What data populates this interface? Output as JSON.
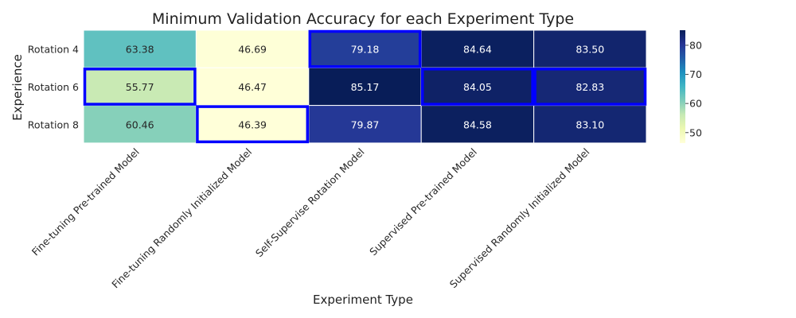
{
  "chart_data": {
    "type": "heatmap",
    "title": "Minimum Validation Accuracy for each Experiment Type",
    "xlabel": "Experiment Type",
    "ylabel": "Experience",
    "x_categories": [
      "Fine-tuning Pre-trained Model",
      "Fine-tuning Randomly Initialized Model",
      "Self-Supervise Rotation Model",
      "Supervised Pre-trained Model",
      "Supervised Randomly Initialized Model"
    ],
    "y_categories": [
      "Rotation 4",
      "Rotation 6",
      "Rotation 8"
    ],
    "values": [
      [
        63.38,
        46.69,
        79.18,
        84.64,
        83.5
      ],
      [
        55.77,
        46.47,
        85.17,
        84.05,
        82.83
      ],
      [
        60.46,
        46.39,
        79.87,
        84.58,
        83.1
      ]
    ],
    "value_labels": [
      [
        "63.38",
        "46.69",
        "79.18",
        "84.64",
        "83.50"
      ],
      [
        "55.77",
        "46.47",
        "85.17",
        "84.05",
        "82.83"
      ],
      [
        "60.46",
        "46.39",
        "79.87",
        "84.58",
        "83.10"
      ]
    ],
    "highlighted_cells": [
      [
        1,
        0
      ],
      [
        2,
        1
      ],
      [
        0,
        2
      ],
      [
        1,
        3
      ],
      [
        1,
        4
      ]
    ],
    "highlight_color": "#0000ff",
    "colormap": "YlGnBu",
    "color_range": [
      46.39,
      85.17
    ],
    "colorbar_ticks": [
      "50",
      "60",
      "70",
      "80"
    ]
  }
}
